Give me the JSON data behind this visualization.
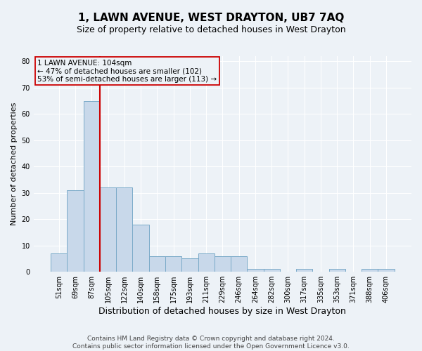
{
  "title": "1, LAWN AVENUE, WEST DRAYTON, UB7 7AQ",
  "subtitle": "Size of property relative to detached houses in West Drayton",
  "xlabel": "Distribution of detached houses by size in West Drayton",
  "ylabel": "Number of detached properties",
  "categories": [
    "51sqm",
    "69sqm",
    "87sqm",
    "105sqm",
    "122sqm",
    "140sqm",
    "158sqm",
    "175sqm",
    "193sqm",
    "211sqm",
    "229sqm",
    "246sqm",
    "264sqm",
    "282sqm",
    "300sqm",
    "317sqm",
    "335sqm",
    "353sqm",
    "371sqm",
    "388sqm",
    "406sqm"
  ],
  "values": [
    7,
    31,
    65,
    32,
    32,
    18,
    6,
    6,
    5,
    7,
    6,
    6,
    1,
    1,
    0,
    1,
    0,
    1,
    0,
    1,
    1
  ],
  "bar_color": "#c8d8ea",
  "bar_edge_color": "#7aaac8",
  "vline_index": 2.5,
  "vline_color": "#cc0000",
  "ylim": [
    0,
    82
  ],
  "yticks": [
    0,
    10,
    20,
    30,
    40,
    50,
    60,
    70,
    80
  ],
  "annotation_text": "1 LAWN AVENUE: 104sqm\n← 47% of detached houses are smaller (102)\n53% of semi-detached houses are larger (113) →",
  "annotation_box_color": "#cc0000",
  "footer_line1": "Contains HM Land Registry data © Crown copyright and database right 2024.",
  "footer_line2": "Contains public sector information licensed under the Open Government Licence v3.0.",
  "bg_color": "#edf2f7",
  "grid_color": "#ffffff",
  "title_fontsize": 11,
  "subtitle_fontsize": 9,
  "xlabel_fontsize": 9,
  "ylabel_fontsize": 8,
  "tick_fontsize": 7,
  "footer_fontsize": 6.5,
  "annotation_fontsize": 7.5
}
